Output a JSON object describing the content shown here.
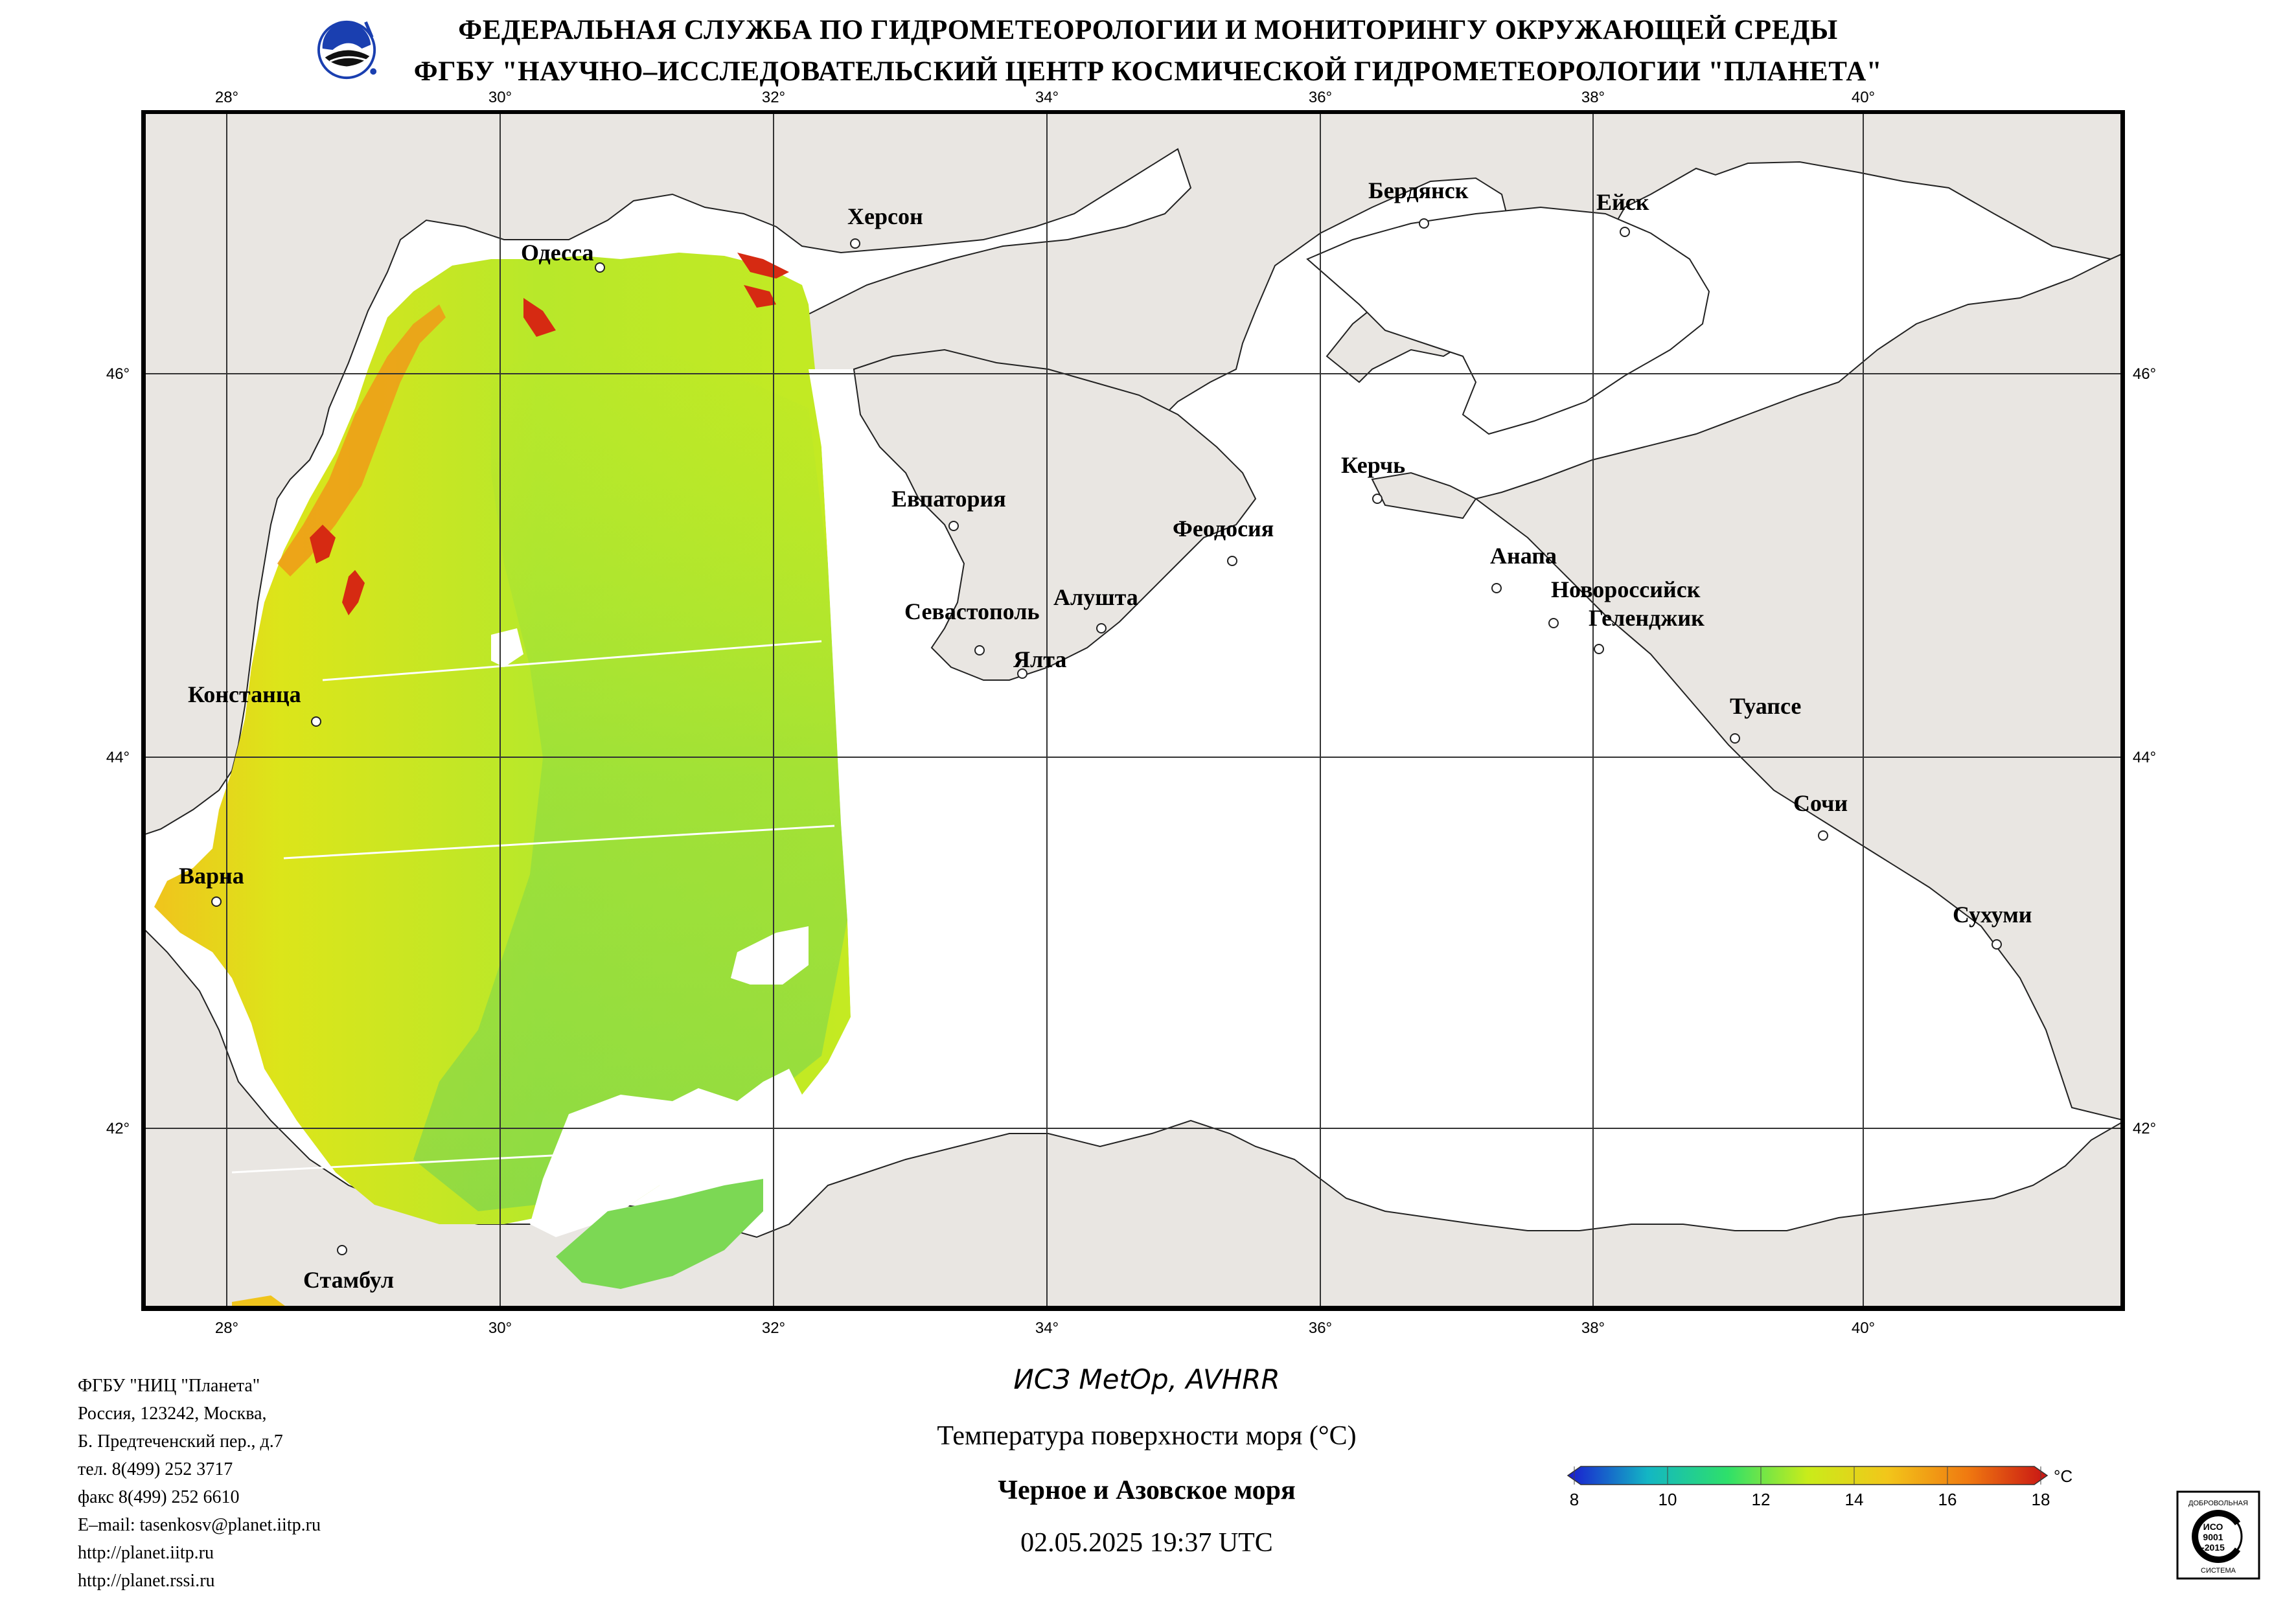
{
  "header": {
    "line1": "ФЕДЕРАЛЬНАЯ СЛУЖБА ПО ГИДРОМЕТЕОРОЛОГИИ И МОНИТОРИНГУ ОКРУЖАЮЩЕЙ СРЕДЫ",
    "line2": "ФГБУ \"НАУЧНО–ИССЛЕДОВАТЕЛЬСКИЙ ЦЕНТР КОСМИЧЕСКОЙ ГИДРОМЕТЕОРОЛОГИИ \"ПЛАНЕТА\""
  },
  "map": {
    "lon_ticks": [
      "28°",
      "30°",
      "32°",
      "34°",
      "36°",
      "38°",
      "40°"
    ],
    "lat_ticks": [
      "46°",
      "44°",
      "42°"
    ],
    "land_color": "#e9e6e2",
    "cities": [
      "Одесса",
      "Херсон",
      "Бердянск",
      "Ейск",
      "Евпатория",
      "Керчь",
      "Феодосия",
      "Анапа",
      "Новороссийск",
      "Геленджик",
      "Севастополь",
      "Алушта",
      "Ялта",
      "Констанца",
      "Туапсе",
      "Сочи",
      "Варна",
      "Сухуми",
      "Стамбул"
    ]
  },
  "footer": {
    "org": "ФГБУ \"НИЦ \"Планета\"",
    "addr1": "Россия, 123242, Москва,",
    "addr2": "Б. Предтеченский пер., д.7",
    "tel": "тел. 8(499) 252 3717",
    "fax": "факс 8(499) 252 6610",
    "email": "E–mail: tasenkosv@planet.iitp.ru",
    "url1": "http://planet.iitp.ru",
    "url2": "http://planet.rssi.ru"
  },
  "product": {
    "satellite": "ИСЗ MetOp, AVHRR",
    "parameter": "Температура поверхности моря (°C)",
    "region": "Черное и Азовское моря",
    "datetime": "02.05.2025 19:37 UTC"
  },
  "colorbar": {
    "unit": "°C",
    "labels": [
      "8",
      "10",
      "12",
      "14",
      "16",
      "18"
    ],
    "colors": [
      "#1a1ad0",
      "#13b6c4",
      "#2ee06a",
      "#c9ec1a",
      "#f2c61a",
      "#f07a10",
      "#c81414"
    ]
  },
  "cert": {
    "top": "ДОБРОВОЛЬНАЯ",
    "mid1": "ИСО",
    "mid2": "9001",
    "mid3": "-2015",
    "bottom": "СИСТЕМА"
  }
}
